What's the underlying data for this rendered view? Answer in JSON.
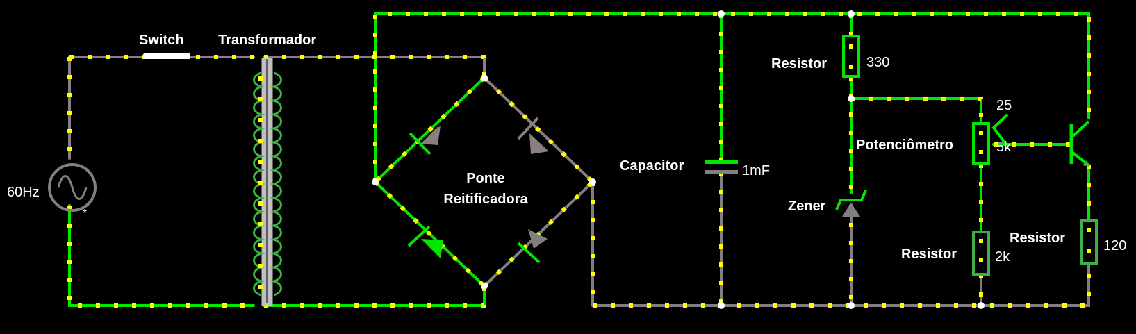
{
  "colors": {
    "wire_live": "#00e600",
    "wire_ground": "#808080",
    "wire_ac": "#8a7f7f",
    "current_dots": "#ffff00",
    "background": "#000000",
    "text": "#ffffff"
  },
  "labels": {
    "source_freq": "60Hz",
    "source_mark": "*",
    "switch": "Switch",
    "transformer": "Transformador",
    "bridge_line1": "Ponte",
    "bridge_line2": "Reitificadora",
    "capacitor": "Capacitor",
    "capacitor_value": "1mF",
    "resistor_top": "Resistor",
    "resistor_top_value": "330",
    "zener": "Zener",
    "potentiometer": "Potenciômetro",
    "potentiometer_value": "5k",
    "potentiometer_setting": "25",
    "resistor_mid": "Resistor",
    "resistor_mid_value": "2k",
    "resistor_right": "Resistor",
    "resistor_right_value": "120"
  }
}
